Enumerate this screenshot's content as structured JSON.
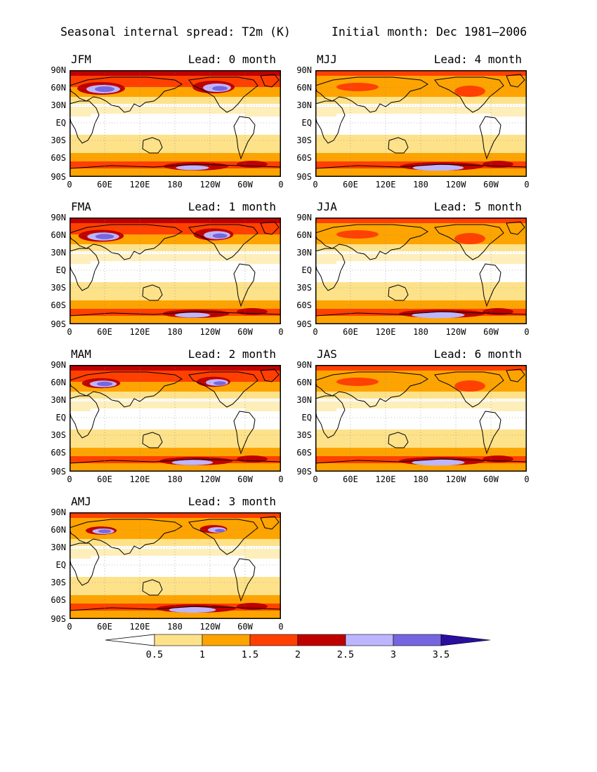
{
  "figure": {
    "title_left": "Seasonal internal spread: T2m (K)",
    "title_right": "Initial month: Dec 1981—2006"
  },
  "axes": {
    "lat_labels": [
      "90N",
      "60N",
      "30N",
      "EQ",
      "30S",
      "60S",
      "90S"
    ],
    "lon_labels": [
      "0",
      "60E",
      "120E",
      "180",
      "120W",
      "60W",
      "0"
    ]
  },
  "panels": [
    {
      "season": "JFM",
      "lead": "Lead: 0 month",
      "intensity": 1.0
    },
    {
      "season": "MJJ",
      "lead": "Lead: 4 month",
      "intensity": 0.55
    },
    {
      "season": "FMA",
      "lead": "Lead: 1 month",
      "intensity": 0.95
    },
    {
      "season": "JJA",
      "lead": "Lead: 5 month",
      "intensity": 0.5
    },
    {
      "season": "MAM",
      "lead": "Lead: 2 month",
      "intensity": 0.8
    },
    {
      "season": "JAS",
      "lead": "Lead: 6 month",
      "intensity": 0.5
    },
    {
      "season": "AMJ",
      "lead": "Lead: 3 month",
      "intensity": 0.65
    }
  ],
  "colorbar": {
    "levels": [
      "0.5",
      "1",
      "1.5",
      "2",
      "2.5",
      "3",
      "3.5"
    ],
    "colors": [
      "#ffffff",
      "#fee28a",
      "#fea400",
      "#ff4000",
      "#c00000",
      "#bdb6ff",
      "#7566e0",
      "#2a0f9e"
    ]
  }
}
